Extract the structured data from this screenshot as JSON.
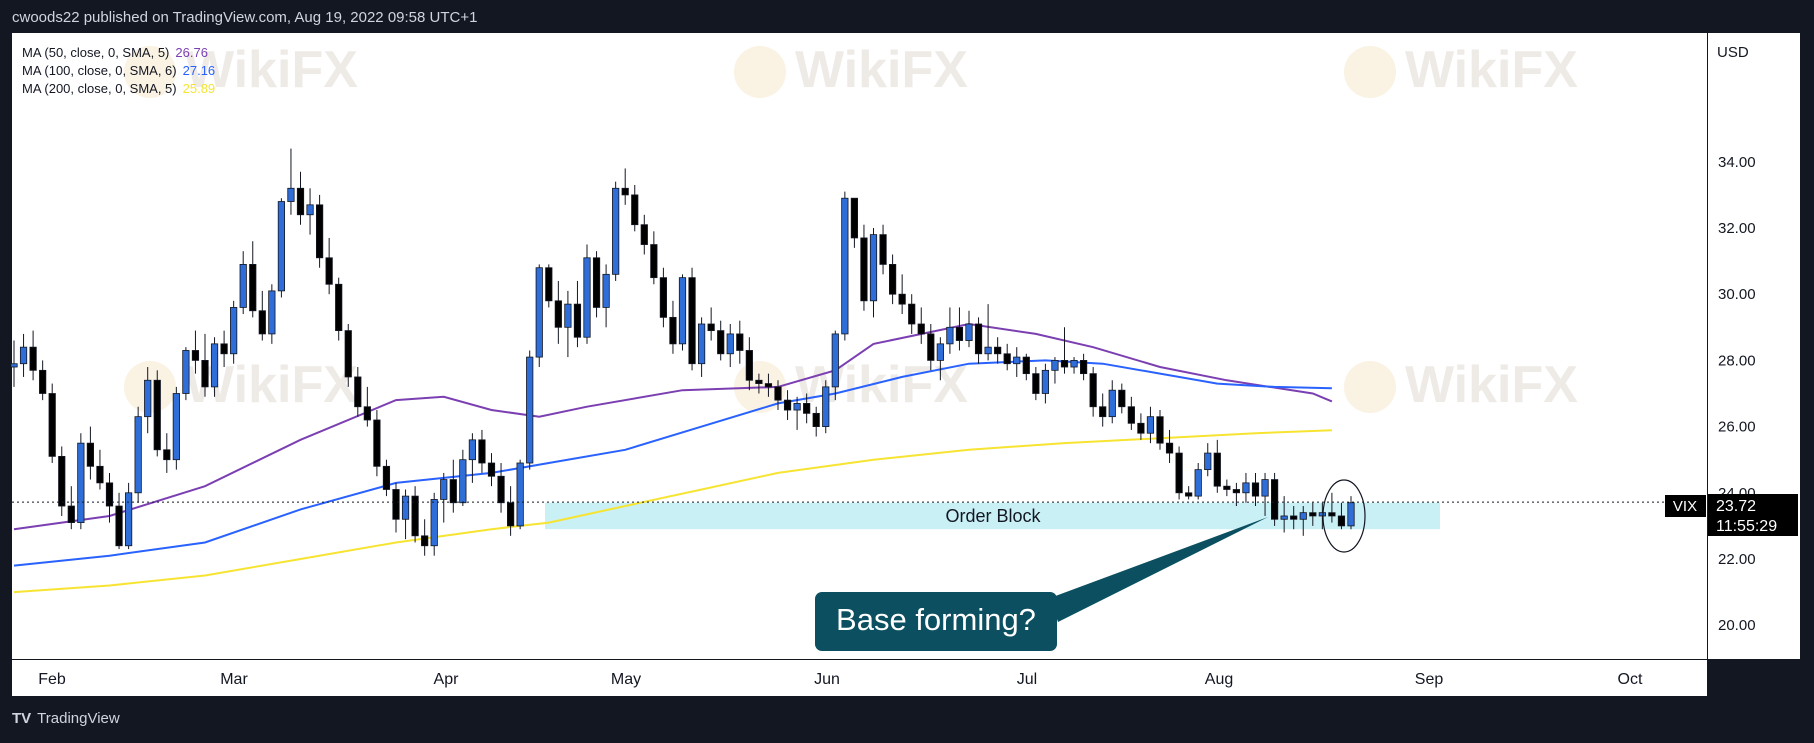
{
  "header": {
    "publisher_line": "cwoods22 published on TradingView.com, Aug 19, 2022 09:58 UTC+1"
  },
  "footer": {
    "brand": "TradingView",
    "logo_glyph": "TV"
  },
  "watermark": {
    "text": "WikiFX"
  },
  "legend": {
    "items": [
      {
        "label": "MA (50, close, 0, SMA, 5)",
        "value": "26.76",
        "color": "#7b3fb2"
      },
      {
        "label": "MA (100, close, 0, SMA, 6)",
        "value": "27.16",
        "color": "#2962ff"
      },
      {
        "label": "MA (200, close, 0, SMA, 5)",
        "value": "25.89",
        "color": "#f7e432"
      }
    ]
  },
  "price_tag": {
    "symbol": "VIX",
    "price": "23.72",
    "countdown": "11:55:29"
  },
  "annotations": {
    "order_block": {
      "label": "Order Block",
      "ymin": 22.9,
      "ymax": 23.7,
      "color": "#c9f0f5"
    },
    "callout": {
      "label": "Base forming?",
      "color": "#0b4f61"
    }
  },
  "chart_data": {
    "type": "candlestick",
    "currency_label": "USD",
    "ylim": [
      19.7,
      35.8
    ],
    "y_ticks": [
      "20.00",
      "22.00",
      "24.00",
      "26.00",
      "28.00",
      "30.00",
      "32.00",
      "34.00"
    ],
    "x_ticks": [
      "Feb",
      "Mar",
      "Apr",
      "May",
      "Jun",
      "Jul",
      "Aug",
      "Sep",
      "Oct"
    ],
    "bull_color": "#2f6ed8",
    "bear_color": "#000000",
    "last_price": 23.72,
    "candles": [
      [
        27.8,
        28.6,
        27.2,
        27.9
      ],
      [
        27.9,
        28.8,
        27.5,
        28.4
      ],
      [
        28.4,
        28.9,
        27.4,
        27.7
      ],
      [
        27.7,
        28.0,
        26.8,
        27.0
      ],
      [
        27.0,
        27.3,
        24.9,
        25.1
      ],
      [
        25.1,
        25.4,
        23.3,
        23.6
      ],
      [
        23.6,
        24.2,
        22.9,
        23.1
      ],
      [
        23.1,
        25.8,
        22.9,
        25.5
      ],
      [
        25.5,
        26.0,
        24.4,
        24.8
      ],
      [
        24.8,
        25.3,
        24.1,
        24.3
      ],
      [
        24.3,
        24.6,
        23.1,
        23.6
      ],
      [
        23.6,
        24.0,
        22.3,
        22.4
      ],
      [
        22.4,
        24.3,
        22.3,
        24.0
      ],
      [
        24.0,
        26.6,
        23.7,
        26.3
      ],
      [
        26.3,
        27.8,
        25.8,
        27.4
      ],
      [
        27.4,
        27.7,
        25.1,
        25.3
      ],
      [
        25.3,
        25.8,
        24.6,
        25.0
      ],
      [
        25.0,
        27.2,
        24.7,
        27.0
      ],
      [
        27.0,
        28.4,
        26.8,
        28.3
      ],
      [
        28.3,
        28.9,
        27.6,
        28.0
      ],
      [
        28.0,
        28.8,
        26.9,
        27.2
      ],
      [
        27.2,
        28.7,
        26.9,
        28.5
      ],
      [
        28.5,
        28.9,
        27.8,
        28.2
      ],
      [
        28.2,
        29.8,
        27.9,
        29.6
      ],
      [
        29.6,
        31.3,
        29.4,
        30.9
      ],
      [
        30.9,
        31.6,
        29.3,
        29.5
      ],
      [
        29.5,
        30.1,
        28.6,
        28.8
      ],
      [
        28.8,
        30.3,
        28.5,
        30.1
      ],
      [
        30.1,
        32.9,
        29.9,
        32.8
      ],
      [
        32.8,
        34.4,
        32.4,
        33.2
      ],
      [
        33.2,
        33.7,
        32.1,
        32.4
      ],
      [
        32.4,
        33.2,
        31.8,
        32.7
      ],
      [
        32.7,
        33.0,
        30.8,
        31.1
      ],
      [
        31.1,
        31.7,
        30.0,
        30.3
      ],
      [
        30.3,
        30.5,
        28.6,
        28.9
      ],
      [
        28.9,
        29.1,
        27.2,
        27.5
      ],
      [
        27.5,
        27.8,
        26.3,
        26.6
      ],
      [
        26.6,
        27.2,
        26.0,
        26.2
      ],
      [
        26.2,
        26.5,
        24.5,
        24.8
      ],
      [
        24.8,
        25.0,
        23.9,
        24.1
      ],
      [
        24.1,
        24.3,
        22.8,
        23.2
      ],
      [
        23.2,
        24.1,
        22.6,
        23.9
      ],
      [
        23.9,
        24.2,
        22.5,
        22.7
      ],
      [
        22.7,
        23.2,
        22.1,
        22.4
      ],
      [
        22.4,
        24.0,
        22.1,
        23.8
      ],
      [
        23.8,
        24.6,
        23.1,
        24.4
      ],
      [
        24.4,
        25.0,
        23.4,
        23.7
      ],
      [
        23.7,
        25.3,
        23.6,
        25.0
      ],
      [
        25.0,
        25.8,
        24.3,
        25.6
      ],
      [
        25.6,
        25.9,
        24.6,
        24.9
      ],
      [
        24.9,
        25.2,
        24.2,
        24.5
      ],
      [
        24.5,
        24.9,
        23.4,
        23.7
      ],
      [
        23.7,
        24.2,
        22.7,
        23.0
      ],
      [
        23.0,
        25.0,
        22.9,
        24.9
      ],
      [
        24.9,
        28.3,
        24.7,
        28.1
      ],
      [
        28.1,
        30.9,
        27.8,
        30.8
      ],
      [
        30.8,
        30.9,
        29.6,
        29.8
      ],
      [
        29.8,
        30.4,
        28.5,
        29.0
      ],
      [
        29.0,
        30.1,
        28.1,
        29.7
      ],
      [
        29.7,
        30.4,
        28.4,
        28.7
      ],
      [
        28.7,
        31.5,
        28.5,
        31.1
      ],
      [
        31.1,
        31.3,
        29.3,
        29.6
      ],
      [
        29.6,
        30.9,
        29.0,
        30.6
      ],
      [
        30.6,
        33.4,
        30.4,
        33.2
      ],
      [
        33.2,
        33.8,
        32.7,
        33.0
      ],
      [
        33.0,
        33.3,
        31.9,
        32.1
      ],
      [
        32.1,
        32.4,
        31.2,
        31.5
      ],
      [
        31.5,
        31.9,
        30.3,
        30.5
      ],
      [
        30.5,
        30.8,
        29.0,
        29.3
      ],
      [
        29.3,
        29.8,
        28.2,
        28.5
      ],
      [
        28.5,
        30.6,
        28.3,
        30.5
      ],
      [
        30.5,
        30.8,
        27.7,
        27.9
      ],
      [
        27.9,
        29.3,
        27.5,
        29.1
      ],
      [
        29.1,
        29.6,
        28.6,
        28.9
      ],
      [
        28.9,
        29.2,
        28.0,
        28.2
      ],
      [
        28.2,
        29.1,
        27.8,
        28.8
      ],
      [
        28.8,
        29.2,
        27.9,
        28.3
      ],
      [
        28.3,
        28.7,
        27.1,
        27.4
      ],
      [
        27.4,
        27.6,
        27.0,
        27.3
      ],
      [
        27.3,
        27.6,
        26.9,
        27.2
      ],
      [
        27.2,
        27.4,
        26.5,
        26.8
      ],
      [
        26.8,
        27.1,
        26.2,
        26.5
      ],
      [
        26.5,
        26.9,
        25.9,
        26.7
      ],
      [
        26.7,
        27.0,
        26.1,
        26.4
      ],
      [
        26.4,
        26.6,
        25.7,
        26.0
      ],
      [
        26.0,
        27.4,
        25.8,
        27.2
      ],
      [
        27.2,
        28.9,
        26.8,
        28.8
      ],
      [
        28.8,
        33.1,
        28.6,
        32.9
      ],
      [
        32.9,
        32.9,
        31.4,
        31.7
      ],
      [
        31.7,
        32.1,
        29.5,
        29.8
      ],
      [
        29.8,
        32.0,
        29.3,
        31.8
      ],
      [
        31.8,
        32.1,
        30.6,
        30.9
      ],
      [
        30.9,
        31.2,
        29.7,
        30.0
      ],
      [
        30.0,
        30.6,
        29.4,
        29.7
      ],
      [
        29.7,
        30.0,
        28.8,
        29.1
      ],
      [
        29.1,
        29.6,
        28.5,
        28.8
      ],
      [
        28.8,
        29.1,
        27.7,
        28.0
      ],
      [
        28.0,
        28.7,
        27.4,
        28.5
      ],
      [
        28.5,
        29.6,
        28.2,
        29.0
      ],
      [
        29.0,
        29.6,
        28.3,
        28.6
      ],
      [
        28.6,
        29.5,
        28.4,
        29.1
      ],
      [
        29.1,
        29.3,
        27.9,
        28.2
      ],
      [
        28.2,
        29.7,
        28.0,
        28.4
      ],
      [
        28.4,
        28.7,
        27.9,
        28.2
      ],
      [
        28.2,
        28.5,
        27.7,
        27.9
      ],
      [
        27.9,
        28.4,
        27.5,
        28.1
      ],
      [
        28.1,
        28.2,
        27.4,
        27.6
      ],
      [
        27.6,
        27.8,
        26.8,
        27.0
      ],
      [
        27.0,
        27.9,
        26.7,
        27.7
      ],
      [
        27.7,
        28.1,
        27.3,
        28.0
      ],
      [
        28.0,
        29.0,
        27.6,
        27.8
      ],
      [
        27.8,
        28.1,
        27.6,
        28.0
      ],
      [
        28.0,
        28.2,
        27.4,
        27.6
      ],
      [
        27.6,
        27.8,
        26.3,
        26.6
      ],
      [
        26.6,
        27.0,
        26.0,
        26.3
      ],
      [
        26.3,
        27.4,
        26.1,
        27.1
      ],
      [
        27.1,
        27.3,
        26.4,
        26.6
      ],
      [
        26.6,
        26.9,
        25.9,
        26.1
      ],
      [
        26.1,
        26.4,
        25.6,
        25.8
      ],
      [
        25.8,
        26.6,
        25.5,
        26.3
      ],
      [
        26.3,
        26.5,
        25.3,
        25.5
      ],
      [
        25.5,
        25.9,
        24.9,
        25.2
      ],
      [
        25.2,
        25.4,
        23.8,
        24.0
      ],
      [
        24.0,
        24.2,
        23.8,
        23.9
      ],
      [
        23.9,
        24.9,
        23.8,
        24.7
      ],
      [
        24.7,
        25.5,
        24.5,
        25.2
      ],
      [
        25.2,
        25.6,
        24.0,
        24.2
      ],
      [
        24.2,
        24.4,
        23.9,
        24.1
      ],
      [
        24.1,
        24.3,
        23.6,
        24.0
      ],
      [
        24.0,
        24.6,
        23.7,
        24.3
      ],
      [
        24.3,
        24.6,
        23.6,
        23.9
      ],
      [
        23.9,
        24.6,
        23.3,
        24.4
      ],
      [
        24.4,
        24.6,
        23.0,
        23.2
      ],
      [
        23.2,
        23.9,
        22.8,
        23.3
      ],
      [
        23.3,
        23.6,
        22.9,
        23.2
      ],
      [
        23.2,
        23.6,
        22.7,
        23.4
      ],
      [
        23.4,
        23.7,
        23.0,
        23.3
      ],
      [
        23.3,
        23.7,
        22.9,
        23.4
      ],
      [
        23.4,
        24.0,
        23.1,
        23.3
      ],
      [
        23.3,
        23.7,
        22.9,
        23.0
      ],
      [
        23.0,
        23.9,
        22.9,
        23.7
      ]
    ],
    "series": [
      {
        "name": "MA (50, close, 0, SMA, 5)",
        "color": "#7b3fb2",
        "values": [
          [
            0,
            22.9
          ],
          [
            10,
            23.3
          ],
          [
            20,
            24.2
          ],
          [
            30,
            25.6
          ],
          [
            40,
            26.8
          ],
          [
            45,
            26.9
          ],
          [
            50,
            26.5
          ],
          [
            55,
            26.3
          ],
          [
            60,
            26.6
          ],
          [
            70,
            27.1
          ],
          [
            80,
            27.2
          ],
          [
            86,
            27.7
          ],
          [
            90,
            28.5
          ],
          [
            100,
            29.1
          ],
          [
            107,
            28.8
          ],
          [
            113,
            28.4
          ],
          [
            120,
            27.8
          ],
          [
            127,
            27.4
          ],
          [
            136,
            27.0
          ],
          [
            138,
            26.76
          ]
        ]
      },
      {
        "name": "MA (100, close, 0, SMA, 6)",
        "color": "#2962ff",
        "values": [
          [
            0,
            21.8
          ],
          [
            10,
            22.1
          ],
          [
            20,
            22.5
          ],
          [
            30,
            23.5
          ],
          [
            40,
            24.3
          ],
          [
            50,
            24.6
          ],
          [
            56,
            24.9
          ],
          [
            64,
            25.3
          ],
          [
            72,
            26.0
          ],
          [
            80,
            26.7
          ],
          [
            86,
            27.0
          ],
          [
            93,
            27.5
          ],
          [
            100,
            27.9
          ],
          [
            108,
            28.0
          ],
          [
            114,
            27.9
          ],
          [
            120,
            27.6
          ],
          [
            126,
            27.3
          ],
          [
            132,
            27.2
          ],
          [
            138,
            27.16
          ]
        ]
      },
      {
        "name": "MA (200, close, 0, SMA, 5)",
        "color": "#f7e432",
        "values": [
          [
            0,
            21.0
          ],
          [
            10,
            21.2
          ],
          [
            20,
            21.5
          ],
          [
            30,
            22.0
          ],
          [
            40,
            22.5
          ],
          [
            50,
            22.9
          ],
          [
            56,
            23.1
          ],
          [
            64,
            23.6
          ],
          [
            72,
            24.1
          ],
          [
            80,
            24.6
          ],
          [
            90,
            25.0
          ],
          [
            100,
            25.3
          ],
          [
            110,
            25.5
          ],
          [
            120,
            25.65
          ],
          [
            130,
            25.8
          ],
          [
            138,
            25.89
          ]
        ]
      }
    ]
  }
}
